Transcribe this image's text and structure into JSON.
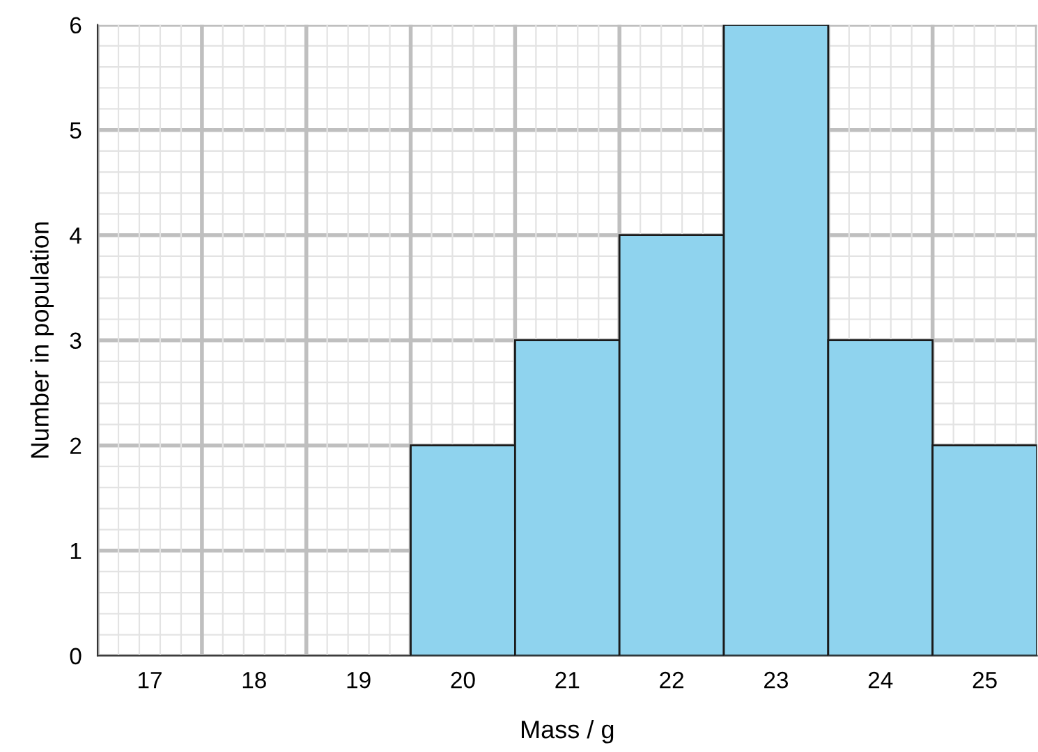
{
  "chart_data": {
    "type": "bar",
    "xlabel": "Mass / g",
    "ylabel": "Number in population",
    "categories": [
      "17",
      "18",
      "19",
      "20",
      "21",
      "22",
      "23",
      "24",
      "25"
    ],
    "values": [
      0,
      0,
      0,
      2,
      3,
      4,
      6,
      3,
      2
    ],
    "color": "#8fd3ee",
    "ylim": [
      0,
      6
    ],
    "yticks": [
      0,
      1,
      2,
      3,
      4,
      5,
      6
    ],
    "grid": true
  }
}
